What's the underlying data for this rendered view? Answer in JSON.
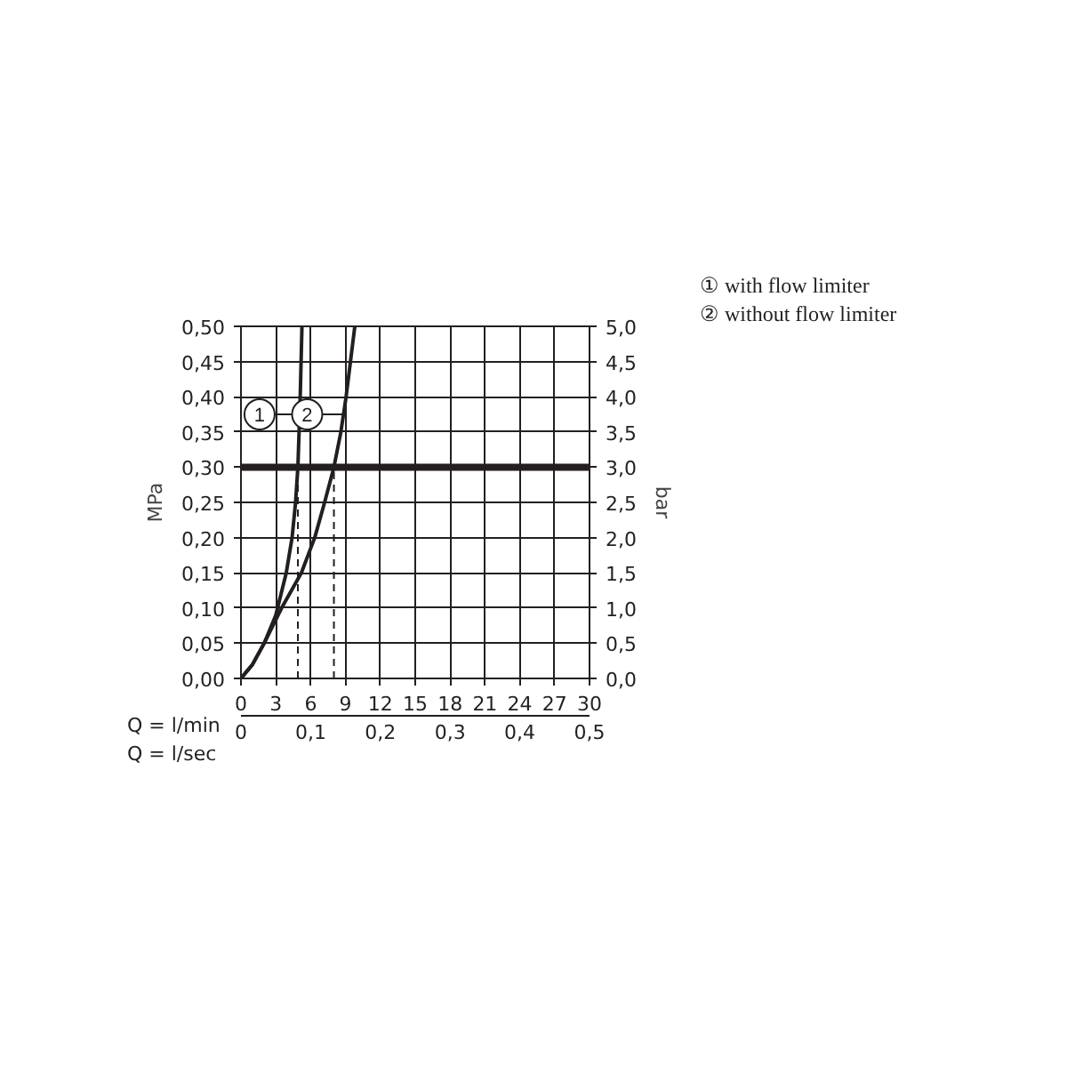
{
  "chart_data": {
    "type": "line",
    "xlabel": "Q = l/min",
    "x2label": "Q = l/sec",
    "ylabel": "MPa",
    "y2label": "bar",
    "xlim": [
      0,
      30
    ],
    "xticks": [
      0,
      3,
      6,
      9,
      12,
      15,
      18,
      21,
      24,
      27,
      30
    ],
    "x2lim": [
      0,
      0.5
    ],
    "x2ticks": [
      0,
      {
        "value": 0.1,
        "label": "0,1"
      },
      {
        "value": 0.2,
        "label": "0,2"
      },
      {
        "value": 0.3,
        "label": "0,3"
      },
      {
        "value": 0.4,
        "label": "0,4"
      },
      {
        "value": 0.5,
        "label": "0,5"
      }
    ],
    "ylim": [
      0,
      0.5
    ],
    "yticks": [
      {
        "value": 0,
        "label": "0,00"
      },
      {
        "value": 0.05,
        "label": "0,05"
      },
      {
        "value": 0.1,
        "label": "0,10"
      },
      {
        "value": 0.15,
        "label": "0,15"
      },
      {
        "value": 0.2,
        "label": "0,20"
      },
      {
        "value": 0.25,
        "label": "0,25"
      },
      {
        "value": 0.3,
        "label": "0,30"
      },
      {
        "value": 0.35,
        "label": "0,35"
      },
      {
        "value": 0.4,
        "label": "0,40"
      },
      {
        "value": 0.45,
        "label": "0,45"
      },
      {
        "value": 0.5,
        "label": "0,50"
      }
    ],
    "y2lim": [
      0,
      5
    ],
    "y2ticks": [
      {
        "value": 0,
        "label": "0,0"
      },
      {
        "value": 0.5,
        "label": "0,5"
      },
      {
        "value": 1,
        "label": "1,0"
      },
      {
        "value": 1.5,
        "label": "1,5"
      },
      {
        "value": 2,
        "label": "2,0"
      },
      {
        "value": 2.5,
        "label": "2,5"
      },
      {
        "value": 3,
        "label": "3,0"
      },
      {
        "value": 3.5,
        "label": "3,5"
      },
      {
        "value": 4,
        "label": "4,0"
      },
      {
        "value": 4.5,
        "label": "4,5"
      },
      {
        "value": 5,
        "label": "5,0"
      }
    ],
    "grid": true,
    "series": [
      {
        "color": "#231f20",
        "x": [
          0,
          1,
          2,
          3,
          3.9,
          4.4,
          4.7,
          4.9,
          5.1,
          5.25
        ],
        "values": [
          0,
          0.02,
          0.05,
          0.09,
          0.15,
          0.2,
          0.25,
          0.3,
          0.4,
          0.5
        ]
      },
      {
        "color": "#231f20",
        "x": [
          0,
          1,
          2,
          3.5,
          5.2,
          6.35,
          7.2,
          8,
          8.6,
          9.05,
          9.8
        ],
        "values": [
          0,
          0.02,
          0.05,
          0.1,
          0.15,
          0.2,
          0.25,
          0.3,
          0.35,
          0.4,
          0.5
        ]
      }
    ],
    "ref_lines": [
      {
        "axis": "y",
        "value": 0.3,
        "color": "#231f20",
        "line_style": "solid"
      },
      {
        "axis": "x",
        "value": 4.9,
        "color": "#231f20",
        "line_style": "dashed"
      },
      {
        "axis": "x",
        "value": 8,
        "color": "#231f20",
        "line_style": "dashed"
      }
    ],
    "annotations": [
      {
        "text": "1",
        "x": 5.0,
        "y": 0.375
      },
      {
        "text": "2",
        "x": 9.1,
        "y": 0.375
      },
      "① with flow limiter",
      "② without flow limiter"
    ]
  }
}
